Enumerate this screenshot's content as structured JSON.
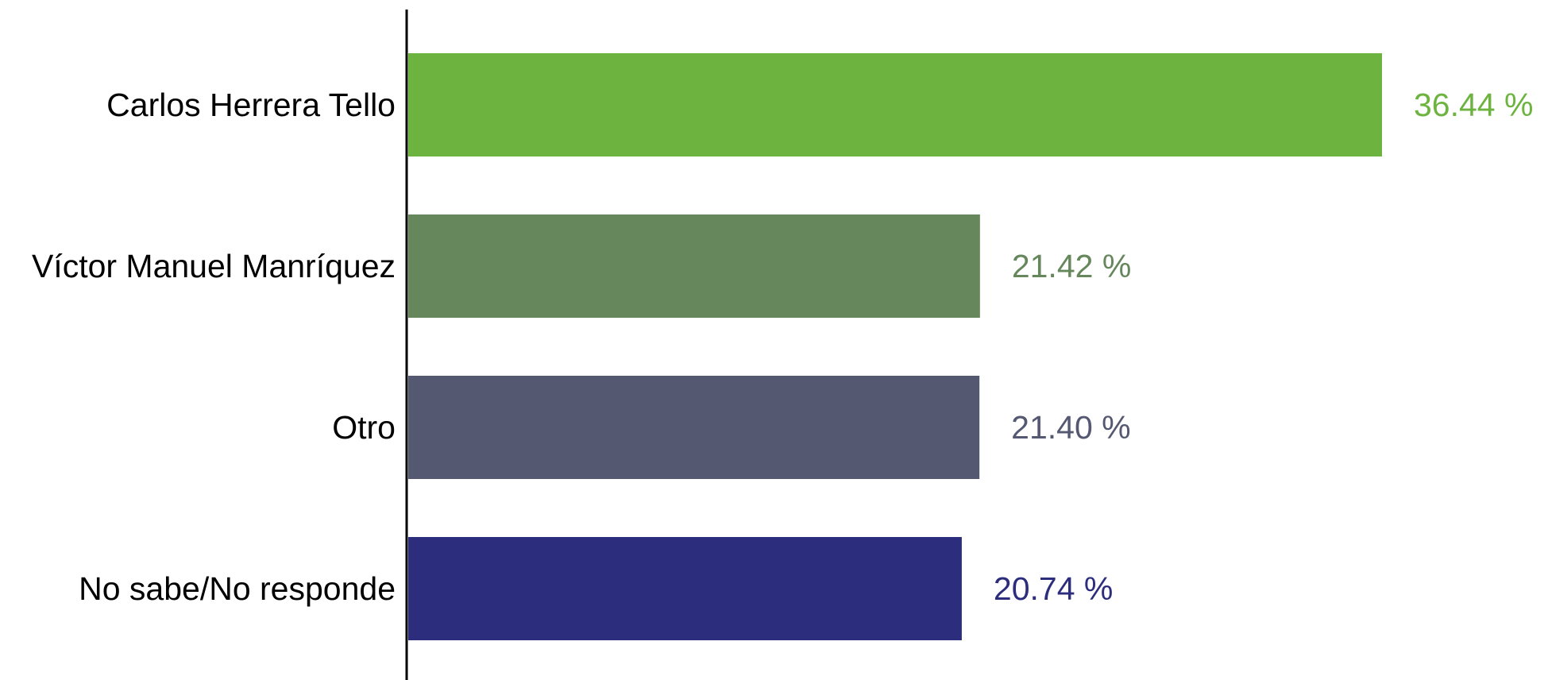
{
  "chart_data": {
    "type": "bar",
    "orientation": "horizontal",
    "title": "",
    "xlabel": "",
    "ylabel": "",
    "categories": [
      "Carlos Herrera Tello",
      "Víctor Manuel Manríquez",
      "Otro",
      "No sabe/No responde"
    ],
    "values": [
      36.44,
      21.42,
      21.4,
      20.74
    ],
    "value_labels": [
      "36.44 %",
      "21.42 %",
      "21.40 %",
      "20.74 %"
    ],
    "colors": [
      "#6db33f",
      "#66875c",
      "#545870",
      "#2d2d7e"
    ],
    "xlim": [
      0,
      36.44
    ],
    "grid": false,
    "legend": "none"
  }
}
